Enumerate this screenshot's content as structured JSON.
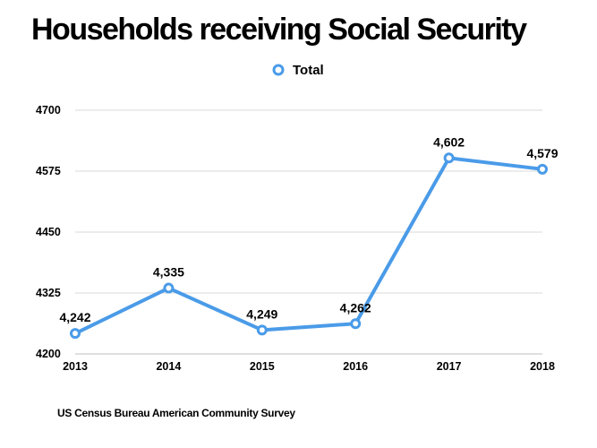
{
  "chart_data": {
    "type": "line",
    "title": "Households receiving Social Security",
    "categories": [
      "2013",
      "2014",
      "2015",
      "2016",
      "2017",
      "2018"
    ],
    "series": [
      {
        "name": "Total",
        "values": [
          4242,
          4335,
          4249,
          4262,
          4602,
          4579
        ],
        "labels": [
          "4,242",
          "4,335",
          "4,249",
          "4,262",
          "4,602",
          "4,579"
        ]
      }
    ],
    "yticks": [
      "4200",
      "4325",
      "4450",
      "4575",
      "4700"
    ],
    "ylim": [
      4200,
      4700
    ],
    "xlabel": "",
    "ylabel": "",
    "grid": true,
    "legend": "top-center",
    "source": "US Census Bureau American Community Survey",
    "colors": {
      "line": "#4a9be8",
      "grid": "#d9d9d9",
      "axis": "#bfbfbf"
    }
  }
}
